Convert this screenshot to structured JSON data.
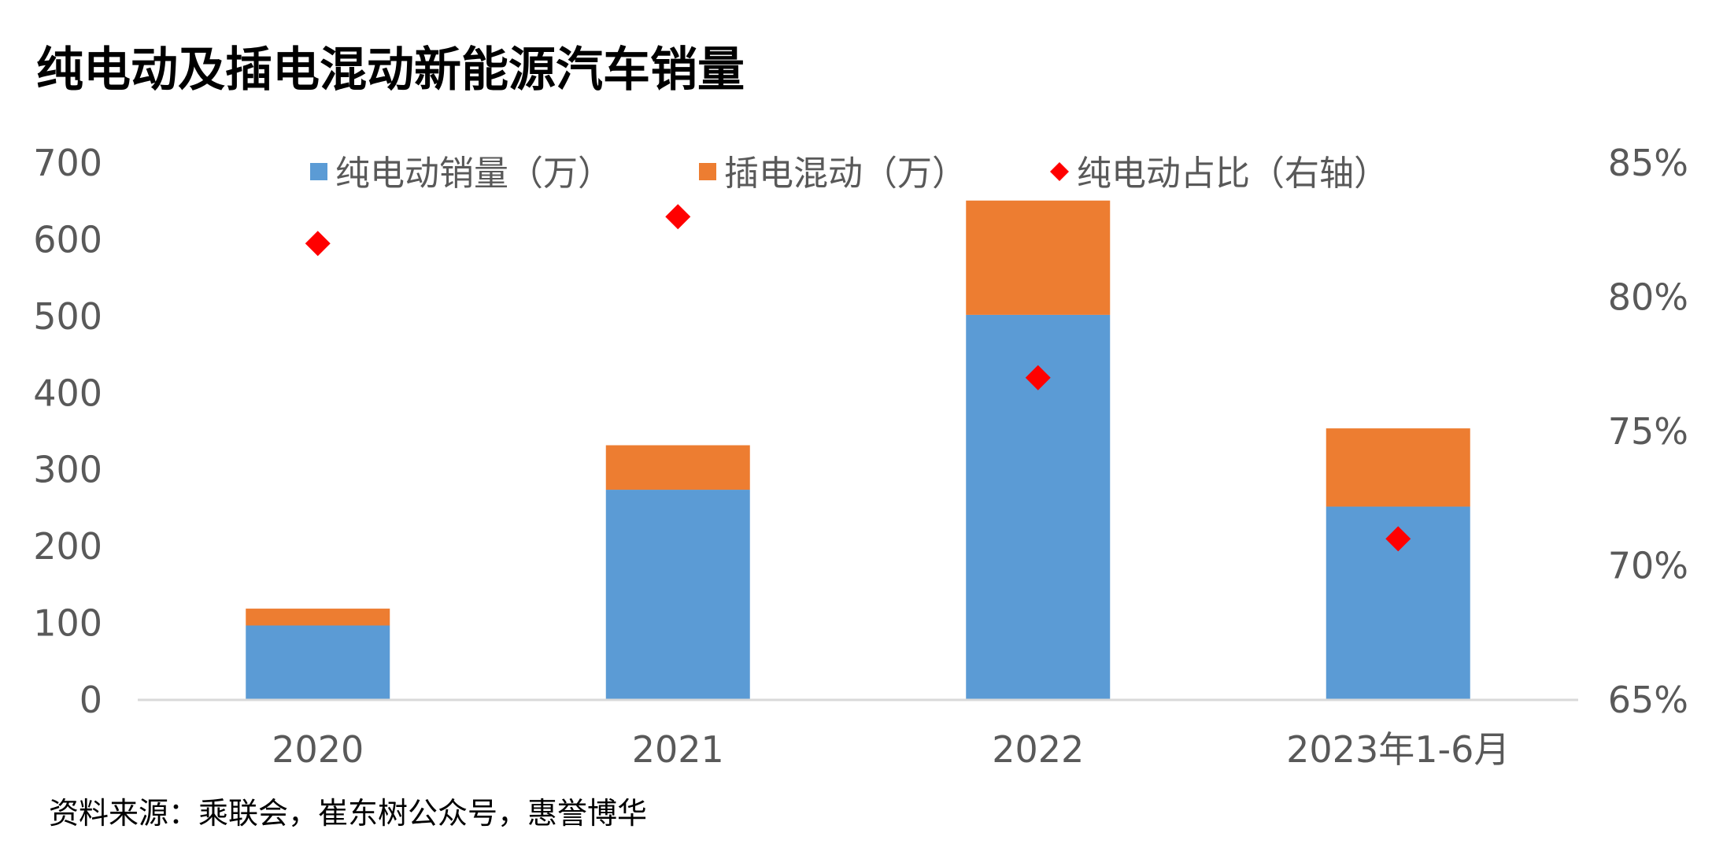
{
  "title": "纯电动及插电混动新能源汽车销量",
  "source": "资料来源：乘联会，崔东树公众号，惠誉博华",
  "colors": {
    "bev": "#5B9BD5",
    "phev": "#ED7D31",
    "share": "#FF0000",
    "axis": "#D9D9D9",
    "text": "#595959"
  },
  "chart_data": {
    "type": "bar",
    "title": "纯电动及插电混动新能源汽车销量",
    "categories": [
      "2020",
      "2021",
      "2022",
      "2023年1-6月"
    ],
    "stacked": true,
    "series": [
      {
        "name": "纯电动销量（万）",
        "type": "bar",
        "axis": "left",
        "values": [
          97,
          274,
          502,
          252
        ]
      },
      {
        "name": "插电混动（万）",
        "type": "bar",
        "axis": "left",
        "values": [
          22,
          58,
          149,
          102
        ]
      },
      {
        "name": "纯电动占比（右轴）",
        "type": "scatter",
        "marker": "diamond",
        "axis": "right",
        "values": [
          0.82,
          0.83,
          0.77,
          0.71
        ]
      }
    ],
    "y_left": {
      "lim": [
        0,
        700
      ],
      "ticks": [
        "0",
        "100",
        "200",
        "300",
        "400",
        "500",
        "600",
        "700"
      ]
    },
    "y_right": {
      "lim": [
        0.65,
        0.85
      ],
      "ticks": [
        "65%",
        "70%",
        "75%",
        "80%",
        "85%"
      ]
    },
    "legend": "top",
    "grid": false
  }
}
